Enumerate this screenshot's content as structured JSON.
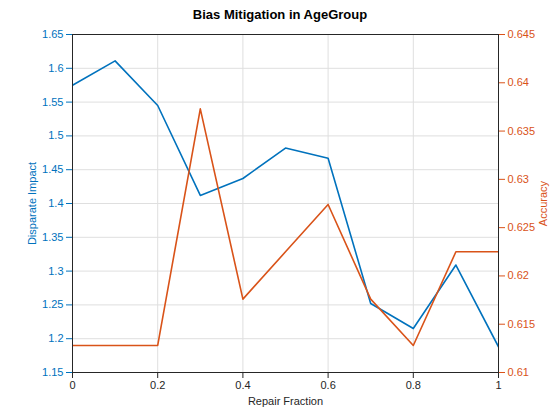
{
  "chart_data": {
    "type": "line",
    "title": "Bias Mitigation in AgeGroup",
    "x_label": "Repair Fraction",
    "y_label": "Disparate Impact",
    "y2_label": "Accuracy",
    "x": [
      0,
      0.1,
      0.2,
      0.3,
      0.4,
      0.5,
      0.6,
      0.7,
      0.8,
      0.9,
      1
    ],
    "series": [
      {
        "color": "#0072BD",
        "values": [
          1.575,
          1.611,
          1.545,
          1.412,
          1.437,
          1.482,
          1.467,
          1.252,
          1.215,
          1.309,
          1.188
        ]
      },
      {
        "color": "#D95319",
        "axis": "y2",
        "values": [
          0.6128,
          0.6128,
          0.6128,
          0.6373,
          0.6176,
          0.6225,
          0.6274,
          0.6176,
          0.6128,
          0.6225,
          0.6225
        ]
      }
    ],
    "xlim": [
      0,
      1
    ],
    "xticks": [
      0,
      0.2,
      0.4,
      0.6,
      0.8,
      1
    ],
    "ylim": [
      1.15,
      1.65
    ],
    "yticks": [
      1.15,
      1.2,
      1.25,
      1.3,
      1.35,
      1.4,
      1.45,
      1.5,
      1.55,
      1.6,
      1.65
    ],
    "y2lim": [
      0.61,
      0.645
    ],
    "y2ticks": [
      0.61,
      0.615,
      0.62,
      0.625,
      0.63,
      0.635,
      0.64,
      0.645
    ],
    "grid": true
  }
}
